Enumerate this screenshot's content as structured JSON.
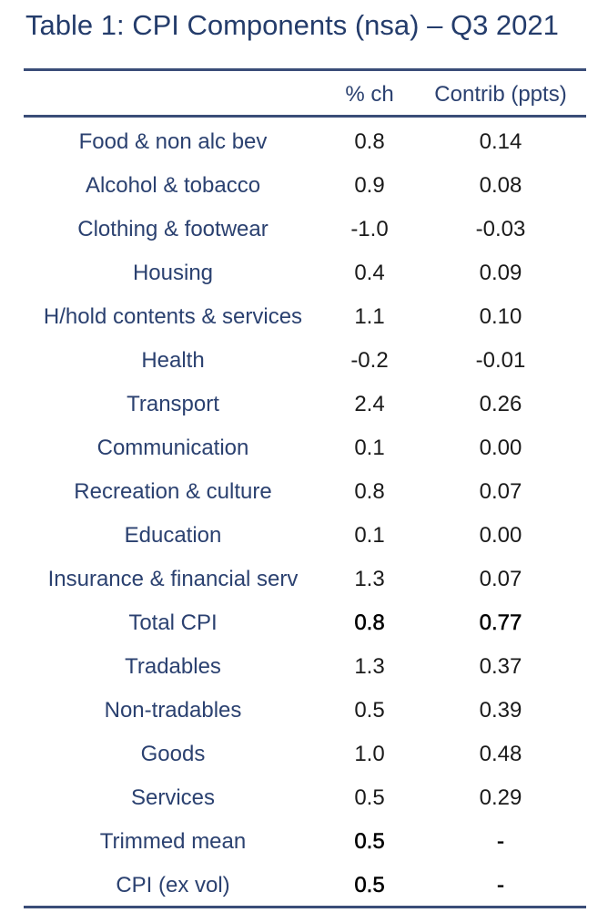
{
  "title": "Table 1: CPI Components (nsa) – Q3 2021",
  "columns": {
    "label": "",
    "pct": "% ch",
    "contrib": "Contrib (ppts)"
  },
  "rows": [
    {
      "label": "Food & non alc bev",
      "pct": "0.8",
      "contrib": "0.14",
      "bold": false
    },
    {
      "label": "Alcohol & tobacco",
      "pct": "0.9",
      "contrib": "0.08",
      "bold": false
    },
    {
      "label": "Clothing & footwear",
      "pct": "-1.0",
      "contrib": "-0.03",
      "bold": false
    },
    {
      "label": "Housing",
      "pct": "0.4",
      "contrib": "0.09",
      "bold": false
    },
    {
      "label": "H/hold contents & services",
      "pct": "1.1",
      "contrib": "0.10",
      "bold": false
    },
    {
      "label": "Health",
      "pct": "-0.2",
      "contrib": "-0.01",
      "bold": false
    },
    {
      "label": "Transport",
      "pct": "2.4",
      "contrib": "0.26",
      "bold": false
    },
    {
      "label": "Communication",
      "pct": "0.1",
      "contrib": "0.00",
      "bold": false
    },
    {
      "label": "Recreation & culture",
      "pct": "0.8",
      "contrib": "0.07",
      "bold": false
    },
    {
      "label": "Education",
      "pct": "0.1",
      "contrib": "0.00",
      "bold": false
    },
    {
      "label": "Insurance & financial serv",
      "pct": "1.3",
      "contrib": "0.07",
      "bold": false
    },
    {
      "label": "Total CPI",
      "pct": "0.8",
      "contrib": "0.77",
      "bold": true
    },
    {
      "label": "Tradables",
      "pct": "1.3",
      "contrib": "0.37",
      "bold": false
    },
    {
      "label": "Non-tradables",
      "pct": "0.5",
      "contrib": "0.39",
      "bold": false
    },
    {
      "label": "Goods",
      "pct": "1.0",
      "contrib": "0.48",
      "bold": false
    },
    {
      "label": "Services",
      "pct": "0.5",
      "contrib": "0.29",
      "bold": false
    },
    {
      "label": "Trimmed mean",
      "pct": "0.5",
      "contrib": "-",
      "bold": true
    },
    {
      "label": "CPI (ex vol)",
      "pct": "0.5",
      "contrib": "-",
      "bold": true
    }
  ]
}
